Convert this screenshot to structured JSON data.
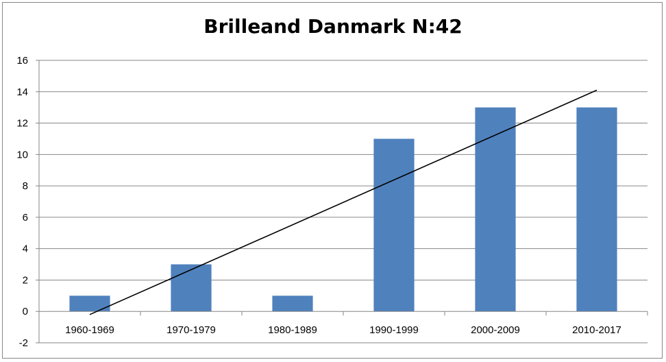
{
  "chart_data": {
    "type": "bar",
    "title": "Brilleand Danmark N:42",
    "xlabel": "",
    "ylabel": "",
    "categories": [
      "1960-1969",
      "1970-1979",
      "1980-1989",
      "1990-1999",
      "2000-2009",
      "2010-2017"
    ],
    "values": [
      1,
      3,
      1,
      11,
      13,
      13
    ],
    "ylim": [
      -2,
      16
    ],
    "yticks": [
      "-2",
      "0",
      "2",
      "4",
      "6",
      "8",
      "10",
      "12",
      "14",
      "16"
    ],
    "grid": true,
    "legend": "none",
    "trendline": {
      "type": "linear",
      "start": -0.2,
      "end": 14.1
    },
    "colors": {
      "bar": "#4F81BD",
      "gridline": "#868686",
      "trendline": "#000000"
    }
  }
}
